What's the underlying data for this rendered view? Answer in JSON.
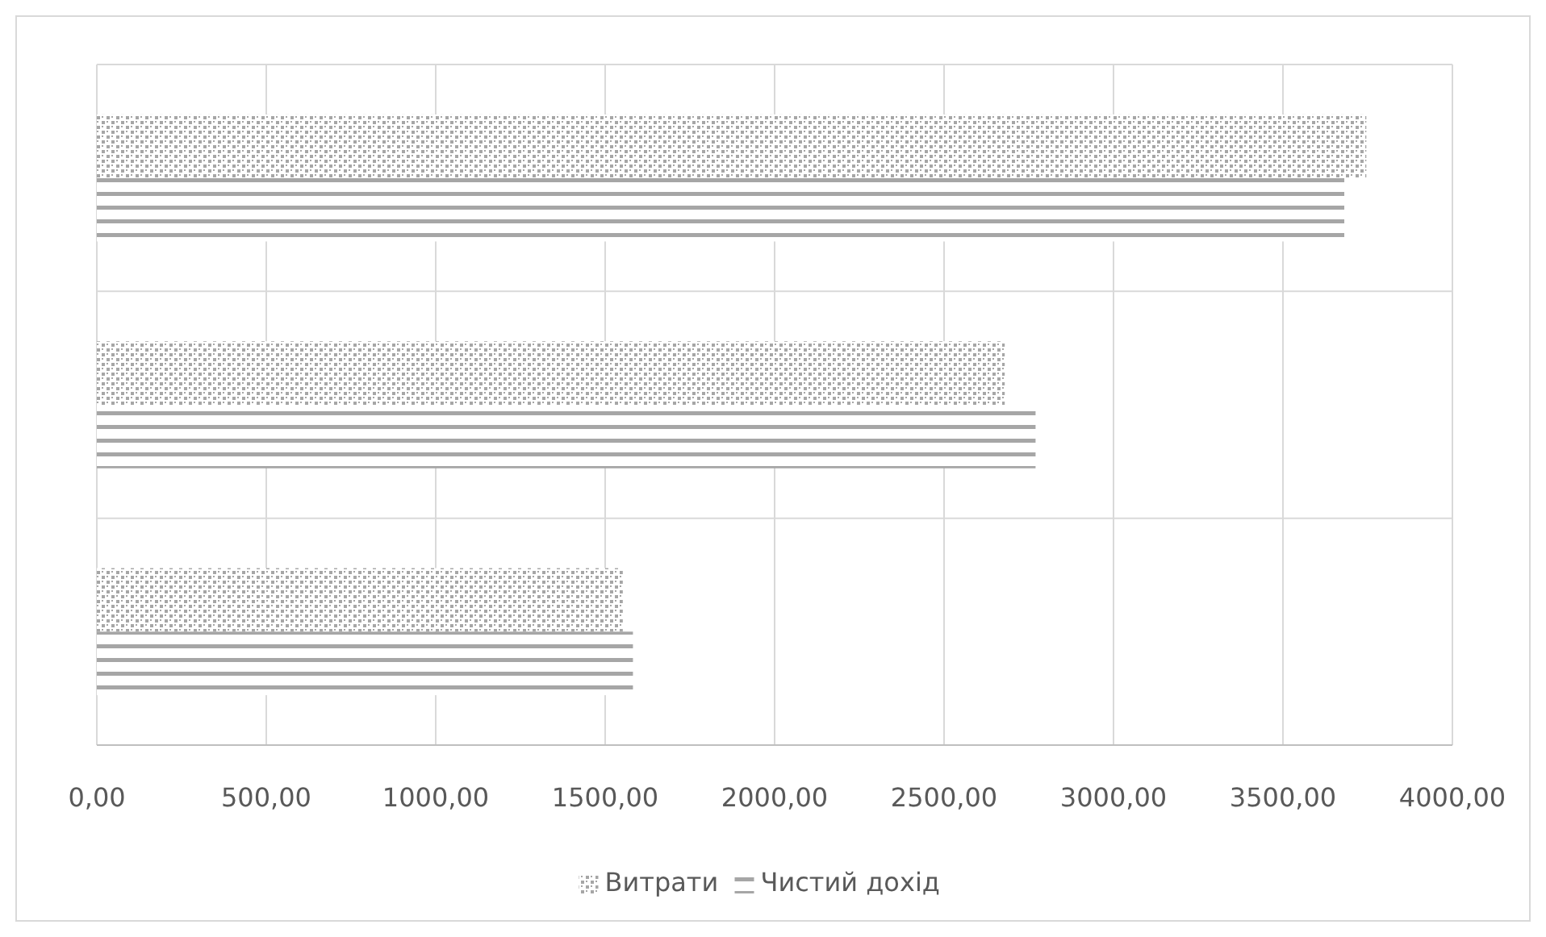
{
  "chart_data": {
    "type": "bar",
    "orientation": "horizontal",
    "categories": [
      null,
      null,
      null
    ],
    "series": [
      {
        "name": "Витрати",
        "color": "#a6a6a6",
        "values": [
          3746,
          2679,
          1552
        ]
      },
      {
        "name": "Чистий дохід",
        "color": "#a6a6a6",
        "values": [
          3681,
          2770,
          1582
        ]
      }
    ],
    "xlim": [
      0,
      4000
    ],
    "xticks": [
      {
        "value": 0,
        "label": "0,00"
      },
      {
        "value": 500,
        "label": "500,00"
      },
      {
        "value": 1000,
        "label": "1000,00"
      },
      {
        "value": 1500,
        "label": "1500,00"
      },
      {
        "value": 2000,
        "label": "2000,00"
      },
      {
        "value": 2500,
        "label": "2500,00"
      },
      {
        "value": 3000,
        "label": "3000,00"
      },
      {
        "value": 3500,
        "label": "3500,00"
      },
      {
        "value": 4000,
        "label": "4000,00"
      }
    ],
    "grid": true,
    "legend": "bottom"
  }
}
